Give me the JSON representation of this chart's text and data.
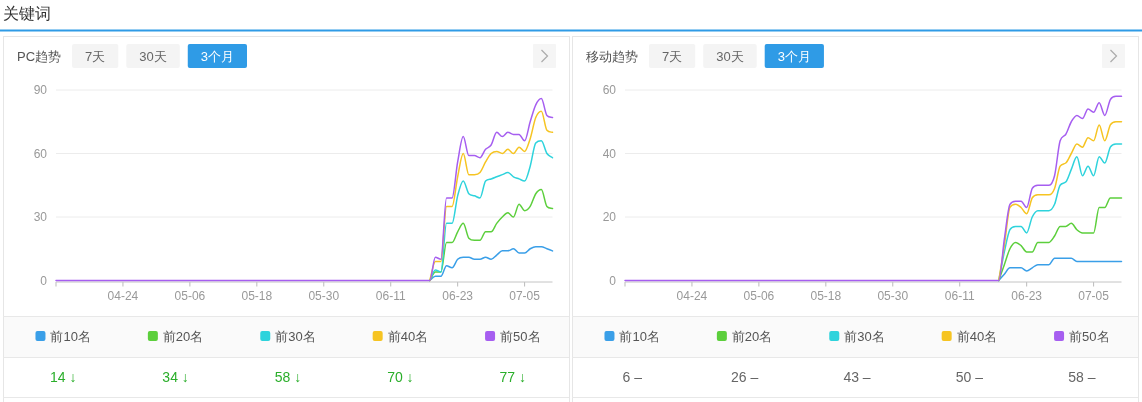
{
  "chart_data": [
    {
      "type": "line",
      "subtitle": "关键词",
      "title": "PC趋势",
      "annotations": [
        "7天",
        "30天",
        "3个月",
        "14 ↓",
        "34 ↓",
        "58 ↓",
        "70 ↓",
        "77 ↓"
      ],
      "x": [
        "--04-12",
        "--06-18",
        "--06-19",
        "--06-20",
        "--06-21",
        "--06-22",
        "--06-23",
        "--06-24",
        "--06-25",
        "--06-26",
        "--06-27",
        "--06-28",
        "--06-29",
        "--06-30",
        "--07-01",
        "--07-02",
        "--07-03",
        "--07-04",
        "--07-05",
        "--07-06",
        "--07-07",
        "--07-08",
        "--07-09",
        "--07-10"
      ],
      "xlim": [
        "--04-12",
        "--07-10"
      ],
      "xticks": [
        {
          "value": "--04-12",
          "label": null
        },
        {
          "value": "--04-24",
          "label": "04-24"
        },
        {
          "value": "--05-06",
          "label": "05-06"
        },
        {
          "value": "--05-18",
          "label": "05-18"
        },
        {
          "value": "--05-30",
          "label": "05-30"
        },
        {
          "value": "--06-11",
          "label": "06-11"
        },
        {
          "value": "--06-23",
          "label": "06-23"
        },
        {
          "value": "--07-05",
          "label": "07-05"
        }
      ],
      "ylim": [
        0,
        90
      ],
      "yticks": [
        0,
        30,
        60,
        90
      ],
      "grid": "y",
      "legend": "bottom",
      "series": [
        {
          "name": "前10名",
          "color": "#3a9fe8",
          "values": [
            null,
            0,
            2,
            2,
            7,
            6,
            10,
            11,
            11,
            10,
            10,
            11,
            10,
            12,
            14,
            14,
            15,
            13,
            13,
            15,
            16,
            16,
            15,
            14
          ]
        },
        {
          "name": "前20名",
          "color": "#5ccf3c",
          "values": [
            null,
            0,
            4,
            4,
            18,
            18,
            23,
            27,
            20,
            19,
            19,
            23,
            23,
            27,
            30,
            32,
            30,
            36,
            33,
            35,
            41,
            43,
            35,
            34
          ]
        },
        {
          "name": "前30名",
          "color": "#2ed3dc",
          "values": [
            null,
            0,
            5,
            4,
            27,
            27,
            40,
            47,
            41,
            40,
            39,
            47,
            48,
            49,
            50,
            51,
            49,
            48,
            47,
            54,
            65,
            66,
            60,
            58
          ]
        },
        {
          "name": "前40名",
          "color": "#f6c422",
          "values": [
            null,
            0,
            9,
            9,
            35,
            35,
            49,
            60,
            50,
            50,
            51,
            56,
            60,
            61,
            60,
            62,
            60,
            63,
            61,
            67,
            77,
            80,
            71,
            70
          ]
        },
        {
          "name": "前50名",
          "color": "#a65ef0",
          "values": [
            0,
            0,
            11,
            10,
            39,
            39,
            56,
            68,
            59,
            59,
            58,
            62,
            64,
            70,
            68,
            70,
            69,
            69,
            66,
            75,
            83,
            86,
            78,
            77
          ]
        }
      ]
    },
    {
      "type": "line",
      "title": "移动趋势",
      "annotations": [
        "7天",
        "30天",
        "3个月",
        "6 –",
        "26 –",
        "43 –",
        "50 –",
        "58 –"
      ],
      "x": [
        "--04-12",
        "--06-18",
        "--06-19",
        "--06-20",
        "--06-21",
        "--06-22",
        "--06-23",
        "--06-24",
        "--06-25",
        "--06-26",
        "--06-27",
        "--06-28",
        "--06-29",
        "--06-30",
        "--07-01",
        "--07-02",
        "--07-03",
        "--07-04",
        "--07-05",
        "--07-06",
        "--07-07",
        "--07-08",
        "--07-09",
        "--07-10"
      ],
      "xlim": [
        "--04-12",
        "--07-10"
      ],
      "xticks": [
        {
          "value": "--04-12",
          "label": null
        },
        {
          "value": "--04-24",
          "label": "04-24"
        },
        {
          "value": "--05-06",
          "label": "05-06"
        },
        {
          "value": "--05-18",
          "label": "05-18"
        },
        {
          "value": "--05-30",
          "label": "05-30"
        },
        {
          "value": "--06-11",
          "label": "06-11"
        },
        {
          "value": "--06-23",
          "label": "06-23"
        },
        {
          "value": "--07-05",
          "label": "07-05"
        }
      ],
      "ylim": [
        0,
        60
      ],
      "yticks": [
        0,
        20,
        40,
        60
      ],
      "grid": "y",
      "legend": "bottom",
      "series": [
        {
          "name": "前10名",
          "color": "#3a9fe8",
          "values": [
            null,
            0,
            2,
            4,
            4,
            4,
            3,
            4,
            5,
            5,
            5,
            7,
            7,
            7,
            7,
            6,
            6,
            6,
            6,
            6,
            6,
            6,
            6,
            6
          ]
        },
        {
          "name": "前20名",
          "color": "#5ccf3c",
          "values": [
            null,
            0,
            5,
            10,
            12,
            11,
            9,
            9,
            12,
            12,
            12,
            14,
            17,
            17,
            18,
            16,
            15,
            15,
            15,
            23,
            23,
            26,
            26,
            26
          ]
        },
        {
          "name": "前30名",
          "color": "#2ed3dc",
          "values": [
            null,
            0,
            9,
            16,
            17,
            17,
            15,
            20,
            22,
            22,
            22,
            24,
            30,
            31,
            35,
            39,
            33,
            36,
            33,
            39,
            37,
            42,
            43,
            43
          ]
        },
        {
          "name": "前40名",
          "color": "#f6c422",
          "values": [
            null,
            0,
            11,
            23,
            24,
            23,
            21,
            26,
            27,
            27,
            27,
            29,
            36,
            37,
            40,
            43,
            42,
            45,
            44,
            49,
            44,
            49,
            50,
            50
          ]
        },
        {
          "name": "前50名",
          "color": "#a65ef0",
          "values": [
            0,
            0,
            13,
            24,
            25,
            25,
            23,
            29,
            30,
            30,
            30,
            33,
            44,
            46,
            50,
            52,
            51,
            54,
            53,
            56,
            52,
            57,
            58,
            58
          ]
        }
      ]
    }
  ]
}
